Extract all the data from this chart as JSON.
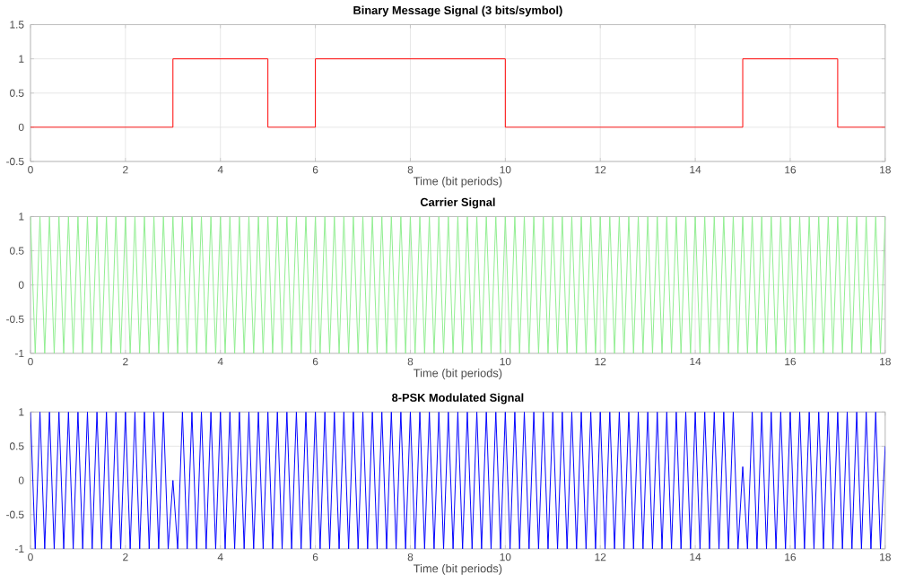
{
  "chart_data": [
    {
      "type": "step",
      "title": "Binary Message Signal (3 bits/symbol)",
      "xlabel": "Time (bit periods)",
      "x": [
        0,
        3,
        5,
        6,
        10,
        15,
        17,
        18
      ],
      "values": [
        0,
        1,
        0,
        1,
        0,
        1,
        0,
        0
      ],
      "color": "#ff0000",
      "xlim": [
        0,
        18
      ],
      "ylim": [
        -0.5,
        1.5
      ],
      "xticks": [
        0,
        2,
        4,
        6,
        8,
        10,
        12,
        14,
        16,
        18
      ],
      "yticks": [
        -0.5,
        0,
        0.5,
        1,
        1.5
      ],
      "grid": true
    },
    {
      "type": "line",
      "title": "Carrier Signal",
      "xlabel": "Time (bit periods)",
      "x": [
        0,
        0.1,
        0.2,
        0.3,
        0.4,
        0.5,
        0.6,
        0.7,
        0.8,
        0.9,
        1,
        1.1,
        1.2,
        1.3,
        1.4,
        1.5,
        1.6,
        1.7,
        1.8,
        1.9,
        2,
        2.1,
        2.2,
        2.3,
        2.4,
        2.5,
        2.6,
        2.7,
        2.8,
        2.9,
        3,
        3.1,
        3.2,
        3.3,
        3.4,
        3.5,
        3.6,
        3.7,
        3.8,
        3.9,
        4,
        4.1,
        4.2,
        4.3,
        4.4,
        4.5,
        4.6,
        4.7,
        4.8,
        4.9,
        5,
        5.1,
        5.2,
        5.3,
        5.4,
        5.5,
        5.6,
        5.7,
        5.8,
        5.9,
        6,
        6.1,
        6.2,
        6.3,
        6.4,
        6.5,
        6.6,
        6.7,
        6.8,
        6.9,
        7,
        7.1,
        7.2,
        7.3,
        7.4,
        7.5,
        7.6,
        7.7,
        7.8,
        7.9,
        8,
        8.1,
        8.2,
        8.3,
        8.4,
        8.5,
        8.6,
        8.7,
        8.8,
        8.9,
        9,
        9.1,
        9.2,
        9.3,
        9.4,
        9.5,
        9.6,
        9.7,
        9.8,
        9.9,
        10,
        10.1,
        10.2,
        10.3,
        10.4,
        10.5,
        10.6,
        10.7,
        10.8,
        10.9,
        11,
        11.1,
        11.2,
        11.3,
        11.4,
        11.5,
        11.6,
        11.7,
        11.8,
        11.9,
        12,
        12.1,
        12.2,
        12.3,
        12.4,
        12.5,
        12.6,
        12.7,
        12.8,
        12.9,
        13,
        13.1,
        13.2,
        13.3,
        13.4,
        13.5,
        13.6,
        13.7,
        13.8,
        13.9,
        14,
        14.1,
        14.2,
        14.3,
        14.4,
        14.5,
        14.6,
        14.7,
        14.8,
        14.9,
        15,
        15.1,
        15.2,
        15.3,
        15.4,
        15.5,
        15.6,
        15.7,
        15.8,
        15.9,
        16,
        16.1,
        16.2,
        16.3,
        16.4,
        16.5,
        16.6,
        16.7,
        16.8,
        16.9,
        17,
        17.1,
        17.2,
        17.3,
        17.4,
        17.5,
        17.6,
        17.7,
        17.8,
        17.9,
        18
      ],
      "values": [
        1,
        -1,
        1,
        -1,
        1,
        -1,
        1,
        -1,
        1,
        -1,
        1,
        -1,
        1,
        -1,
        1,
        -1,
        1,
        -1,
        1,
        -1,
        1,
        -1,
        1,
        -1,
        1,
        -1,
        1,
        -1,
        1,
        -1,
        1,
        -1,
        1,
        -1,
        1,
        -1,
        1,
        -1,
        1,
        -1,
        1,
        -1,
        1,
        -1,
        1,
        -1,
        1,
        -1,
        1,
        -1,
        1,
        -1,
        1,
        -1,
        1,
        -1,
        1,
        -1,
        1,
        -1,
        1,
        -1,
        1,
        -1,
        1,
        -1,
        1,
        -1,
        1,
        -1,
        1,
        -1,
        1,
        -1,
        1,
        -1,
        1,
        -1,
        1,
        -1,
        1,
        -1,
        1,
        -1,
        1,
        -1,
        1,
        -1,
        1,
        -1,
        1,
        -1,
        1,
        -1,
        1,
        -1,
        1,
        -1,
        1,
        -1,
        1,
        -1,
        1,
        -1,
        1,
        -1,
        1,
        -1,
        1,
        -1,
        1,
        -1,
        1,
        -1,
        1,
        -1,
        1,
        -1,
        1,
        -1,
        1,
        -1,
        1,
        -1,
        1,
        -1,
        1,
        -1,
        1,
        -1,
        1,
        -1,
        1,
        -1,
        1,
        -1,
        1,
        -1,
        1,
        -1,
        1,
        -1,
        1,
        -1,
        1,
        -1,
        1,
        -1,
        1,
        -1,
        1,
        -1,
        1,
        -1,
        1,
        -1,
        1,
        -1,
        1,
        -1,
        1,
        -1,
        1,
        -1,
        1,
        -1,
        1,
        -1,
        1,
        -1,
        1,
        -1,
        1,
        -1,
        1,
        -1,
        1,
        -1,
        1,
        -1,
        1
      ],
      "color": "#90ee90",
      "xlim": [
        0,
        18
      ],
      "ylim": [
        -1,
        1
      ],
      "xticks": [
        0,
        2,
        4,
        6,
        8,
        10,
        12,
        14,
        16,
        18
      ],
      "yticks": [
        -1,
        -0.5,
        0,
        0.5,
        1
      ],
      "grid": true
    },
    {
      "type": "line",
      "title": "8-PSK Modulated Signal",
      "xlabel": "Time (bit periods)",
      "x": [
        0,
        0.1,
        0.2,
        0.3,
        0.4,
        0.5,
        0.6,
        0.7,
        0.8,
        0.9,
        1,
        1.1,
        1.2,
        1.3,
        1.4,
        1.5,
        1.6,
        1.7,
        1.8,
        1.9,
        2,
        2.1,
        2.2,
        2.3,
        2.4,
        2.5,
        2.6,
        2.7,
        2.8,
        2.9,
        3,
        3.1,
        3.2,
        3.3,
        3.4,
        3.5,
        3.6,
        3.7,
        3.8,
        3.9,
        4,
        4.1,
        4.2,
        4.3,
        4.4,
        4.5,
        4.6,
        4.7,
        4.8,
        4.9,
        5,
        5.1,
        5.2,
        5.3,
        5.4,
        5.5,
        5.6,
        5.7,
        5.8,
        5.9,
        6,
        6.1,
        6.2,
        6.3,
        6.4,
        6.5,
        6.6,
        6.7,
        6.8,
        6.9,
        7,
        7.1,
        7.2,
        7.3,
        7.4,
        7.5,
        7.6,
        7.7,
        7.8,
        7.9,
        8,
        8.1,
        8.2,
        8.3,
        8.4,
        8.5,
        8.6,
        8.7,
        8.8,
        8.9,
        9,
        9.1,
        9.2,
        9.3,
        9.4,
        9.5,
        9.6,
        9.7,
        9.8,
        9.9,
        10,
        10.1,
        10.2,
        10.3,
        10.4,
        10.5,
        10.6,
        10.7,
        10.8,
        10.9,
        11,
        11.1,
        11.2,
        11.3,
        11.4,
        11.5,
        11.6,
        11.7,
        11.8,
        11.9,
        12,
        12.1,
        12.2,
        12.3,
        12.4,
        12.5,
        12.6,
        12.7,
        12.8,
        12.9,
        13,
        13.1,
        13.2,
        13.3,
        13.4,
        13.5,
        13.6,
        13.7,
        13.8,
        13.9,
        14,
        14.1,
        14.2,
        14.3,
        14.4,
        14.5,
        14.6,
        14.7,
        14.8,
        14.9,
        15,
        15.1,
        15.2,
        15.3,
        15.4,
        15.5,
        15.6,
        15.7,
        15.8,
        15.9,
        16,
        16.1,
        16.2,
        16.3,
        16.4,
        16.5,
        16.6,
        16.7,
        16.8,
        16.9,
        17,
        17.1,
        17.2,
        17.3,
        17.4,
        17.5,
        17.6,
        17.7,
        17.8,
        17.9,
        18
      ],
      "values": [
        1,
        -1,
        1,
        -1,
        1,
        -1,
        1,
        -1,
        1,
        -1,
        1,
        -1,
        1,
        -1,
        1,
        -1,
        1,
        -1,
        1,
        -1,
        1,
        -1,
        1,
        -1,
        1,
        -1,
        1,
        -1,
        1,
        -1,
        0,
        -1,
        1,
        -1,
        1,
        -1,
        1,
        -1,
        1,
        -1,
        1,
        -1,
        1,
        -1,
        1,
        -1,
        1,
        -1,
        1,
        -1,
        1,
        -1,
        1,
        -1,
        1,
        -1,
        1,
        -1,
        1,
        -1,
        1,
        -1,
        1,
        -1,
        1,
        -1,
        1,
        -1,
        1,
        -1,
        1,
        -1,
        1,
        -1,
        1,
        -1,
        1,
        -1,
        1,
        -1,
        1,
        -1,
        1,
        -1,
        1,
        -1,
        1,
        -1,
        1,
        -1,
        1,
        -1,
        1,
        -1,
        1,
        -1,
        1,
        -1,
        1,
        -1,
        1,
        -1,
        1,
        -1,
        1,
        -1,
        1,
        -1,
        1,
        -1,
        1,
        -1,
        1,
        -1,
        1,
        -1,
        1,
        -1,
        1,
        -1,
        1,
        -1,
        1,
        -1,
        1,
        -1,
        1,
        -1,
        1,
        -1,
        1,
        -1,
        1,
        -1,
        1,
        -1,
        1,
        -1,
        1,
        -1,
        1,
        -1,
        1,
        -1,
        1,
        -1,
        1,
        -1,
        1,
        -1,
        0.2,
        -1,
        1,
        -1,
        1,
        -1,
        1,
        -1,
        1,
        -1,
        1,
        -1,
        1,
        -1,
        1,
        -1,
        1,
        -1,
        1,
        -1,
        1,
        -1,
        1,
        -1,
        1,
        -1,
        1,
        -1,
        1,
        -1,
        0.5
      ],
      "color": "#0000ff",
      "xlim": [
        0,
        18
      ],
      "ylim": [
        -1,
        1
      ],
      "xticks": [
        0,
        2,
        4,
        6,
        8,
        10,
        12,
        14,
        16,
        18
      ],
      "yticks": [
        -1,
        -0.5,
        0,
        0.5,
        1
      ],
      "grid": true
    }
  ]
}
